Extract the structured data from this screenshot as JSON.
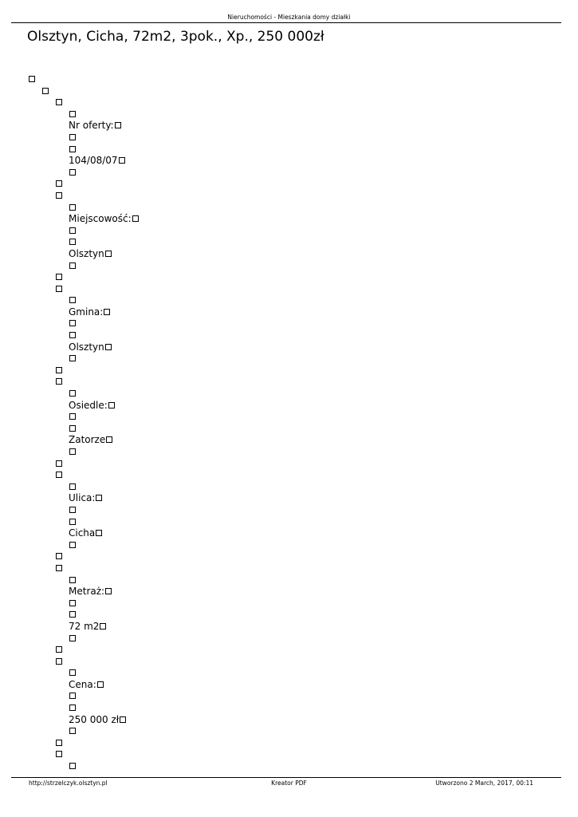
{
  "header": {
    "site_title": "Nieruchomości - Mieszkania domy działki"
  },
  "title": "Olsztyn, Cicha, 72m2, 3pok., Xp., 250 000zł",
  "rows": [
    {
      "label": "Nr oferty:",
      "value": "104/08/07"
    },
    {
      "label": "Miejscowość:",
      "value": "Olsztyn"
    },
    {
      "label": "Gmina:",
      "value": "Olsztyn"
    },
    {
      "label": "Osiedle:",
      "value": "Zatorze"
    },
    {
      "label": "Ulica:",
      "value": "Cicha"
    },
    {
      "label": "Metraż:",
      "value": "72 m2"
    },
    {
      "label": "Cena:",
      "value": "250 000 zł"
    }
  ],
  "footer": {
    "url": "http://strzelczyk.olsztyn.pl",
    "generator": "Kreator PDF",
    "created": "Utworzono 2 March, 2017, 00:11"
  }
}
